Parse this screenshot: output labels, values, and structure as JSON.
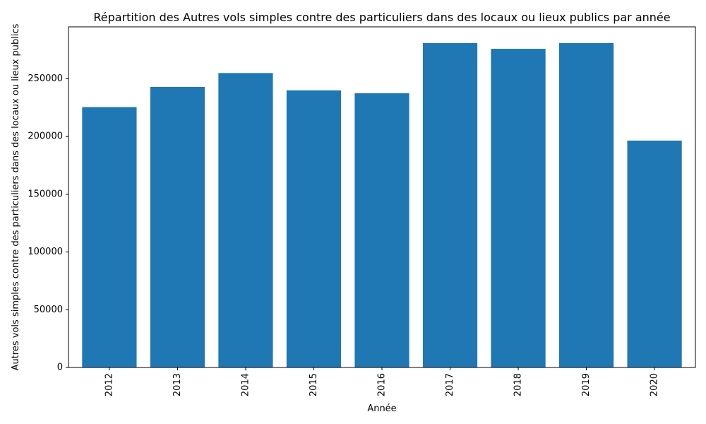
{
  "chart_data": {
    "type": "bar",
    "title": "Répartition des Autres vols simples contre des particuliers dans des locaux ou lieux publics par année",
    "xlabel": "Année",
    "ylabel": "Autres vols simples contre des particuliers dans des locaux ou lieux publics",
    "categories": [
      "2012",
      "2013",
      "2014",
      "2015",
      "2016",
      "2017",
      "2018",
      "2019",
      "2020"
    ],
    "values": [
      225500,
      243000,
      255000,
      240000,
      237500,
      281000,
      276000,
      281000,
      196500
    ],
    "ylim": [
      0,
      295000
    ],
    "yticks": [
      0,
      50000,
      100000,
      150000,
      200000,
      250000
    ],
    "bar_color": "#1f77b4",
    "grid": false,
    "legend": "none"
  }
}
